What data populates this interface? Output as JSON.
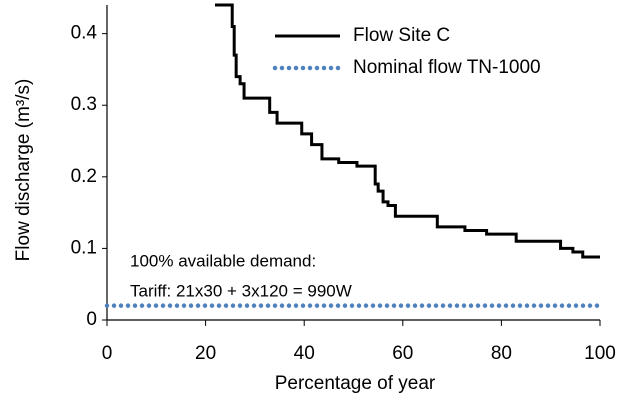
{
  "chart_data": {
    "type": "line",
    "xlabel": "Percentage of year",
    "ylabel": "Flow discharge (m³/s)",
    "annotations": [
      "100% available demand:",
      "Tariff: 21x30 + 3x120 = 990W"
    ],
    "xlim": [
      0,
      100
    ],
    "xticks": [
      0,
      20,
      40,
      60,
      80,
      100
    ],
    "ylim": [
      0,
      0.44
    ],
    "yticks": [
      0,
      0.1,
      0.2,
      0.3,
      0.4
    ],
    "grid": false,
    "legend": "upper right",
    "series": [
      {
        "name": "Flow Site C",
        "color": "#000000",
        "style": "solid",
        "x": [
          21.9,
          25.4,
          25.4,
          25.8,
          25.8,
          26.2,
          26.2,
          27,
          27,
          27.8,
          27.8,
          33,
          33,
          34.5,
          34.5,
          39.5,
          39.5,
          41.5,
          41.5,
          43.6,
          43.6,
          47,
          47,
          50.7,
          50.7,
          54.4,
          54.4,
          55,
          55,
          56,
          56,
          57,
          57,
          58.5,
          58.5,
          67,
          67,
          72.6,
          72.6,
          77,
          77,
          83,
          83,
          92,
          92,
          94.5,
          94.5,
          96.5,
          96.5,
          100
        ],
        "values": [
          0.44,
          0.44,
          0.41,
          0.41,
          0.37,
          0.37,
          0.34,
          0.34,
          0.33,
          0.33,
          0.31,
          0.31,
          0.29,
          0.29,
          0.275,
          0.275,
          0.26,
          0.26,
          0.245,
          0.245,
          0.225,
          0.225,
          0.22,
          0.22,
          0.215,
          0.215,
          0.19,
          0.19,
          0.18,
          0.18,
          0.165,
          0.165,
          0.16,
          0.16,
          0.145,
          0.145,
          0.13,
          0.13,
          0.125,
          0.125,
          0.12,
          0.12,
          0.11,
          0.11,
          0.1,
          0.1,
          0.095,
          0.095,
          0.088,
          0.088
        ]
      },
      {
        "name": "Nominal flow TN-1000",
        "color": "#4f81bd",
        "style": "dotted",
        "x": [
          0,
          100
        ],
        "values": [
          0.02,
          0.02
        ]
      }
    ]
  }
}
